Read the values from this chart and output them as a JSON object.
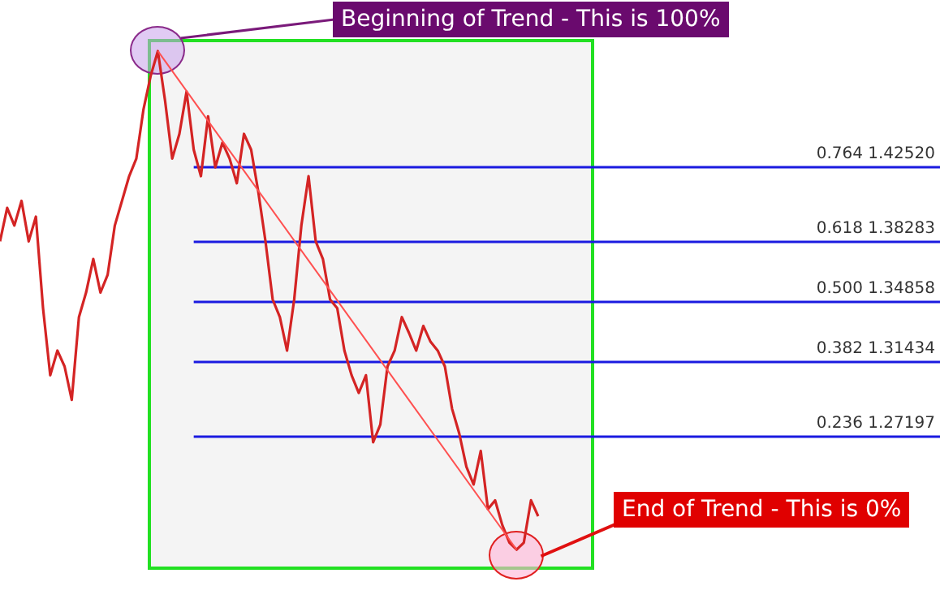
{
  "chart_data": {
    "type": "line",
    "categories": [
      null,
      null,
      null,
      null,
      null,
      null,
      null,
      null,
      null,
      null,
      null,
      null,
      null,
      null,
      null,
      null,
      null,
      null,
      null,
      null,
      null,
      null,
      null,
      null,
      null,
      null,
      null,
      null,
      null,
      null,
      null,
      null,
      null,
      null,
      null,
      null,
      null,
      null,
      null,
      null,
      null,
      null,
      null,
      null,
      null,
      null,
      null,
      null,
      null,
      null,
      null,
      null,
      null,
      null,
      null,
      null,
      null,
      null,
      null,
      null,
      null,
      null,
      null,
      null,
      null,
      null,
      null,
      null,
      null,
      null,
      null,
      null,
      null,
      null,
      null,
      null,
      null,
      null,
      null,
      null,
      null,
      null,
      null,
      null,
      null,
      null,
      null,
      null,
      null,
      null,
      null,
      null,
      null,
      null,
      null,
      null,
      null,
      null,
      null,
      null,
      null,
      null,
      null,
      null,
      null,
      null,
      null,
      null,
      null,
      null,
      null,
      null,
      null,
      null,
      null,
      null,
      null,
      null,
      null,
      null,
      null,
      null,
      null,
      null,
      null,
      null,
      null,
      null,
      null,
      null,
      null,
      null
    ],
    "series": [
      {
        "color": "#d42424",
        "values": [
          1.383,
          1.402,
          1.392,
          1.406,
          1.383,
          1.397,
          1.345,
          1.307,
          1.321,
          1.312,
          1.293,
          1.34,
          1.354,
          1.373,
          1.354,
          1.364,
          1.392,
          1.406,
          1.42,
          1.43,
          1.458,
          1.477,
          1.491,
          1.463,
          1.43,
          1.444,
          1.468,
          1.435,
          1.42,
          1.454,
          1.425,
          1.439,
          1.43,
          1.416,
          1.444,
          1.435,
          1.411,
          1.383,
          1.35,
          1.34,
          1.321,
          1.35,
          1.392,
          1.42,
          1.383,
          1.373,
          1.35,
          1.345,
          1.321,
          1.307,
          1.297,
          1.307,
          1.269,
          1.279,
          1.312,
          1.321,
          1.34,
          1.331,
          1.321,
          1.335,
          1.326,
          1.321,
          1.312,
          1.288,
          1.274,
          1.255,
          1.245,
          1.264,
          1.231,
          1.236,
          1.222,
          1.212,
          1.208,
          1.212,
          1.236,
          1.227,
          null,
          null,
          null,
          null,
          null,
          null,
          null,
          null,
          null,
          null,
          null,
          null,
          null,
          null,
          null,
          null,
          null,
          null,
          null,
          null,
          null,
          null,
          null,
          null,
          null,
          null,
          null,
          null,
          null,
          null,
          null,
          null,
          null,
          null,
          null,
          null,
          null,
          null,
          null,
          null,
          null,
          null,
          null,
          null,
          null,
          null,
          null,
          null,
          null,
          null,
          null,
          null,
          null,
          null,
          null,
          null
        ]
      },
      {
        "color": "#ff5050",
        "values": [
          null,
          null,
          null,
          null,
          null,
          null,
          null,
          null,
          null,
          null,
          null,
          null,
          null,
          null,
          null,
          null,
          null,
          null,
          null,
          null,
          null,
          null,
          1.491,
          null,
          null,
          null,
          null,
          null,
          null,
          null,
          null,
          null,
          null,
          null,
          null,
          null,
          null,
          null,
          null,
          null,
          null,
          null,
          null,
          null,
          null,
          null,
          null,
          null,
          null,
          null,
          null,
          null,
          null,
          null,
          null,
          null,
          null,
          null,
          null,
          null,
          null,
          null,
          null,
          null,
          null,
          null,
          null,
          null,
          null,
          null,
          null,
          null,
          1.208,
          null,
          null,
          null,
          null,
          null,
          null,
          null,
          null,
          null,
          null,
          null,
          null,
          null,
          null,
          null,
          null,
          null,
          null,
          null,
          null,
          null,
          null,
          null,
          null,
          null,
          null,
          null,
          null,
          null,
          null,
          null,
          null,
          null,
          null,
          null,
          null,
          null,
          null,
          null,
          null,
          null,
          null,
          null,
          null,
          null,
          null,
          null,
          null,
          null,
          null,
          null,
          null,
          null,
          null,
          null,
          null,
          null,
          null,
          null
        ]
      }
    ],
    "ylim": [
      1.18,
      1.52
    ],
    "tick_labels": false,
    "grid": false,
    "ref_lines": [
      {
        "axis": "y",
        "value": 1.4252,
        "label": "0.764 1.42520",
        "color": "#1a1ae0"
      },
      {
        "axis": "y",
        "value": 1.38283,
        "label": "0.618 1.38283",
        "color": "#1a1ae0"
      },
      {
        "axis": "y",
        "value": 1.34858,
        "label": "0.500 1.34858",
        "color": "#1a1ae0"
      },
      {
        "axis": "y",
        "value": 1.31434,
        "label": "0.382 1.31434",
        "color": "#1a1ae0"
      },
      {
        "axis": "y",
        "value": 1.27197,
        "label": "0.236 1.27197",
        "color": "#1a1ae0"
      }
    ],
    "annotations": [
      "Beginning of Trend - This is 100%",
      "End of Trend - This is 0%"
    ]
  }
}
